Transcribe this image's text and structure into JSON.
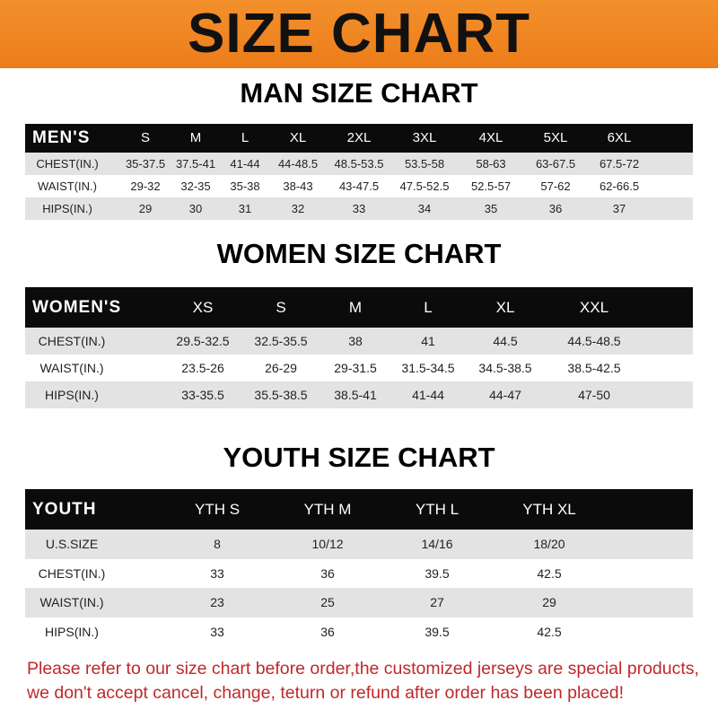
{
  "banner_title": "SIZE CHART",
  "men": {
    "title": "MAN SIZE CHART",
    "header": [
      "MEN'S",
      "S",
      "M",
      "L",
      "XL",
      "2XL",
      "3XL",
      "4XL",
      "5XL",
      "6XL"
    ],
    "rows": [
      [
        "CHEST(IN.)",
        "35-37.5",
        "37.5-41",
        "41-44",
        "44-48.5",
        "48.5-53.5",
        "53.5-58",
        "58-63",
        "63-67.5",
        "67.5-72"
      ],
      [
        "WAIST(IN.)",
        "29-32",
        "32-35",
        "35-38",
        "38-43",
        "43-47.5",
        "47.5-52.5",
        "52.5-57",
        "57-62",
        "62-66.5"
      ],
      [
        "HIPS(IN.)",
        "29",
        "30",
        "31",
        "32",
        "33",
        "34",
        "35",
        "36",
        "37"
      ]
    ]
  },
  "women": {
    "title": "WOMEN SIZE CHART",
    "header": [
      "WOMEN'S",
      "XS",
      "S",
      "M",
      "L",
      "XL",
      "XXL"
    ],
    "rows": [
      [
        "CHEST(IN.)",
        "29.5-32.5",
        "32.5-35.5",
        "38",
        "41",
        "44.5",
        "44.5-48.5"
      ],
      [
        "WAIST(IN.)",
        "23.5-26",
        "26-29",
        "29-31.5",
        "31.5-34.5",
        "34.5-38.5",
        "38.5-42.5"
      ],
      [
        "HIPS(IN.)",
        "33-35.5",
        "35.5-38.5",
        "38.5-41",
        "41-44",
        "44-47",
        "47-50"
      ]
    ]
  },
  "youth": {
    "title": "YOUTH SIZE CHART",
    "header": [
      "YOUTH",
      "YTH S",
      "YTH M",
      "YTH L",
      "YTH XL"
    ],
    "rows": [
      [
        "U.S.SIZE",
        "8",
        "10/12",
        "14/16",
        "18/20"
      ],
      [
        "CHEST(IN.)",
        "33",
        "36",
        "39.5",
        "42.5"
      ],
      [
        "WAIST(IN.)",
        "23",
        "25",
        "27",
        "29"
      ],
      [
        "HIPS(IN.)",
        "33",
        "36",
        "39.5",
        "42.5"
      ]
    ]
  },
  "notice": "Please refer to our size chart before order,the customized jerseys are special products, we don't accept cancel, change, teturn or refund after order has been placed!",
  "colors": {
    "banner": "#ef8522",
    "header_row": "#0b0b0b",
    "shaded_row": "#e3e3e3",
    "notice_text": "#c0282a"
  }
}
